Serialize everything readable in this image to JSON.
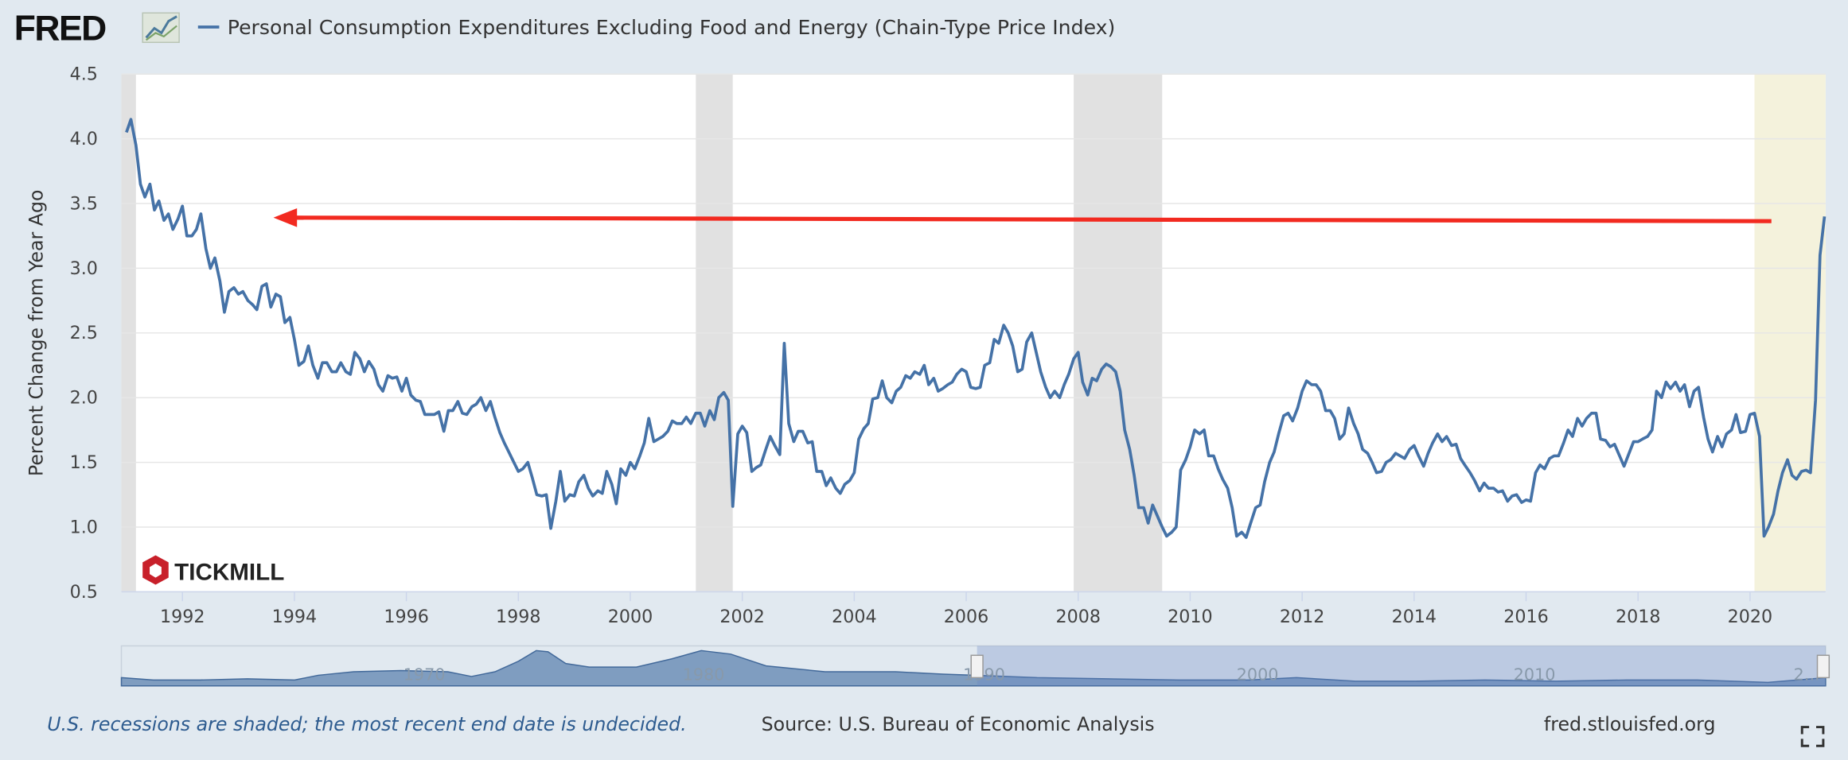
{
  "logo": "FRED",
  "chart_data": {
    "type": "line",
    "ylabel": "Percent Change from Year Ago",
    "xlim": [
      1990.91,
      2021.35
    ],
    "ylim": [
      0.5,
      4.5
    ],
    "xticks": [
      1992,
      1994,
      1996,
      1998,
      2000,
      2002,
      2004,
      2006,
      2008,
      2010,
      2012,
      2014,
      2016,
      2018,
      2020
    ],
    "yticks": [
      0.5,
      {
        "value": 1,
        "label": "1.0"
      },
      1.5,
      {
        "value": 2,
        "label": "2.0"
      },
      2.5,
      {
        "value": 3,
        "label": "3.0"
      },
      3.5,
      {
        "value": 4,
        "label": "4.0"
      },
      4.5
    ],
    "grid": true,
    "recession_color": "#e1e1e1",
    "open_recession_color": "#f4f2dc",
    "recessions": [
      {
        "start": 1990.58,
        "end": 1991.17
      },
      {
        "start": 2001.17,
        "end": 2001.83
      },
      {
        "start": 2007.92,
        "end": 2009.5
      },
      {
        "start": 2020.08
      }
    ],
    "x": [
      1991.0,
      1991.08,
      1991.17,
      1991.25,
      1991.33,
      1991.42,
      1991.5,
      1991.58,
      1991.67,
      1991.75,
      1991.83,
      1991.92,
      1992.0,
      1992.08,
      1992.17,
      1992.25,
      1992.33,
      1992.42,
      1992.5,
      1992.58,
      1992.67,
      1992.75,
      1992.83,
      1992.92,
      1993.0,
      1993.08,
      1993.17,
      1993.25,
      1993.33,
      1993.42,
      1993.5,
      1993.58,
      1993.67,
      1993.75,
      1993.83,
      1993.92,
      1994.0,
      1994.08,
      1994.17,
      1994.25,
      1994.33,
      1994.42,
      1994.5,
      1994.58,
      1994.67,
      1994.75,
      1994.83,
      1994.92,
      1995.0,
      1995.08,
      1995.17,
      1995.25,
      1995.33,
      1995.42,
      1995.5,
      1995.58,
      1995.67,
      1995.75,
      1995.83,
      1995.92,
      1996.0,
      1996.08,
      1996.17,
      1996.25,
      1996.33,
      1996.42,
      1996.5,
      1996.58,
      1996.67,
      1996.75,
      1996.83,
      1996.92,
      1997.0,
      1997.08,
      1997.17,
      1997.25,
      1997.33,
      1997.42,
      1997.5,
      1997.58,
      1997.67,
      1997.75,
      1997.83,
      1997.92,
      1998.0,
      1998.08,
      1998.17,
      1998.25,
      1998.33,
      1998.42,
      1998.5,
      1998.58,
      1998.67,
      1998.75,
      1998.83,
      1998.92,
      1999.0,
      1999.08,
      1999.17,
      1999.25,
      1999.33,
      1999.42,
      1999.5,
      1999.58,
      1999.67,
      1999.75,
      1999.83,
      1999.92,
      2000.0,
      2000.08,
      2000.17,
      2000.25,
      2000.33,
      2000.42,
      2000.5,
      2000.58,
      2000.67,
      2000.75,
      2000.83,
      2000.92,
      2001.0,
      2001.08,
      2001.17,
      2001.25,
      2001.33,
      2001.42,
      2001.5,
      2001.58,
      2001.67,
      2001.75,
      2001.83,
      2001.92,
      2002.0,
      2002.08,
      2002.17,
      2002.25,
      2002.33,
      2002.42,
      2002.5,
      2002.58,
      2002.67,
      2002.75,
      2002.83,
      2002.92,
      2003.0,
      2003.08,
      2003.17,
      2003.25,
      2003.33,
      2003.42,
      2003.5,
      2003.58,
      2003.67,
      2003.75,
      2003.83,
      2003.92,
      2004.0,
      2004.08,
      2004.17,
      2004.25,
      2004.33,
      2004.42,
      2004.5,
      2004.58,
      2004.67,
      2004.75,
      2004.83,
      2004.92,
      2005.0,
      2005.08,
      2005.17,
      2005.25,
      2005.33,
      2005.42,
      2005.5,
      2005.58,
      2005.67,
      2005.75,
      2005.83,
      2005.92,
      2006.0,
      2006.08,
      2006.17,
      2006.25,
      2006.33,
      2006.42,
      2006.5,
      2006.58,
      2006.67,
      2006.75,
      2006.83,
      2006.92,
      2007.0,
      2007.08,
      2007.17,
      2007.25,
      2007.33,
      2007.42,
      2007.5,
      2007.58,
      2007.67,
      2007.75,
      2007.83,
      2007.92,
      2008.0,
      2008.08,
      2008.17,
      2008.25,
      2008.33,
      2008.42,
      2008.5,
      2008.58,
      2008.67,
      2008.75,
      2008.83,
      2008.92,
      2009.0,
      2009.08,
      2009.17,
      2009.25,
      2009.33,
      2009.42,
      2009.5,
      2009.58,
      2009.67,
      2009.75,
      2009.83,
      2009.92,
      2010.0,
      2010.08,
      2010.17,
      2010.25,
      2010.33,
      2010.42,
      2010.5,
      2010.58,
      2010.67,
      2010.75,
      2010.83,
      2010.92,
      2011.0,
      2011.08,
      2011.17,
      2011.25,
      2011.33,
      2011.42,
      2011.5,
      2011.58,
      2011.67,
      2011.75,
      2011.83,
      2011.92,
      2012.0,
      2012.08,
      2012.17,
      2012.25,
      2012.33,
      2012.42,
      2012.5,
      2012.58,
      2012.67,
      2012.75,
      2012.83,
      2012.92,
      2013.0,
      2013.08,
      2013.17,
      2013.25,
      2013.33,
      2013.42,
      2013.5,
      2013.58,
      2013.67,
      2013.75,
      2013.83,
      2013.92,
      2014.0,
      2014.08,
      2014.17,
      2014.25,
      2014.33,
      2014.42,
      2014.5,
      2014.58,
      2014.67,
      2014.75,
      2014.83,
      2014.92,
      2015.0,
      2015.08,
      2015.17,
      2015.25,
      2015.33,
      2015.42,
      2015.5,
      2015.58,
      2015.67,
      2015.75,
      2015.83,
      2015.92,
      2016.0,
      2016.08,
      2016.17,
      2016.25,
      2016.33,
      2016.42,
      2016.5,
      2016.58,
      2016.67,
      2016.75,
      2016.83,
      2016.92,
      2017.0,
      2017.08,
      2017.17,
      2017.25,
      2017.33,
      2017.42,
      2017.5,
      2017.58,
      2017.67,
      2017.75,
      2017.83,
      2017.92,
      2018.0,
      2018.08,
      2018.17,
      2018.25,
      2018.33,
      2018.42,
      2018.5,
      2018.58,
      2018.67,
      2018.75,
      2018.83,
      2018.92,
      2019.0,
      2019.08,
      2019.17,
      2019.25,
      2019.33,
      2019.42,
      2019.5,
      2019.58,
      2019.67,
      2019.75,
      2019.83,
      2019.92,
      2020.0,
      2020.08,
      2020.17,
      2020.25,
      2020.33,
      2020.42,
      2020.5,
      2020.58,
      2020.67,
      2020.75,
      2020.83,
      2020.92,
      2021.0,
      2021.08,
      2021.17,
      2021.25,
      2021.33
    ],
    "series": [
      {
        "name": "Personal Consumption Expenditures Excluding Food and Energy (Chain-Type Price Index)",
        "color": "#4572a7",
        "values": [
          4.05,
          4.15,
          3.95,
          3.65,
          3.55,
          3.65,
          3.45,
          3.52,
          3.37,
          3.42,
          3.3,
          3.38,
          3.48,
          3.25,
          3.25,
          3.3,
          3.42,
          3.15,
          3.0,
          3.08,
          2.9,
          2.66,
          2.82,
          2.85,
          2.8,
          2.82,
          2.75,
          2.72,
          2.68,
          2.86,
          2.88,
          2.7,
          2.8,
          2.78,
          2.58,
          2.62,
          2.45,
          2.25,
          2.28,
          2.4,
          2.25,
          2.15,
          2.27,
          2.27,
          2.2,
          2.2,
          2.27,
          2.2,
          2.18,
          2.35,
          2.3,
          2.2,
          2.28,
          2.22,
          2.1,
          2.05,
          2.17,
          2.15,
          2.16,
          2.05,
          2.15,
          2.02,
          1.98,
          1.97,
          1.87,
          1.87,
          1.87,
          1.89,
          1.74,
          1.9,
          1.9,
          1.97,
          1.88,
          1.87,
          1.93,
          1.95,
          2.0,
          1.9,
          1.97,
          1.85,
          1.73,
          1.65,
          1.58,
          1.5,
          1.43,
          1.45,
          1.5,
          1.38,
          1.25,
          1.24,
          1.25,
          0.99,
          1.2,
          1.43,
          1.2,
          1.25,
          1.24,
          1.35,
          1.4,
          1.3,
          1.24,
          1.28,
          1.26,
          1.43,
          1.33,
          1.18,
          1.45,
          1.4,
          1.5,
          1.45,
          1.55,
          1.65,
          1.84,
          1.66,
          1.68,
          1.7,
          1.74,
          1.82,
          1.8,
          1.8,
          1.85,
          1.8,
          1.88,
          1.88,
          1.78,
          1.9,
          1.83,
          2.0,
          2.04,
          1.98,
          1.16,
          1.72,
          1.78,
          1.73,
          1.43,
          1.46,
          1.48,
          1.6,
          1.7,
          1.63,
          1.56,
          2.42,
          1.8,
          1.66,
          1.74,
          1.74,
          1.65,
          1.66,
          1.43,
          1.43,
          1.32,
          1.38,
          1.3,
          1.26,
          1.33,
          1.36,
          1.42,
          1.68,
          1.76,
          1.8,
          1.99,
          2.0,
          2.13,
          2.0,
          1.96,
          2.05,
          2.08,
          2.17,
          2.15,
          2.2,
          2.18,
          2.25,
          2.1,
          2.15,
          2.05,
          2.07,
          2.1,
          2.12,
          2.18,
          2.22,
          2.2,
          2.08,
          2.07,
          2.08,
          2.25,
          2.27,
          2.45,
          2.42,
          2.56,
          2.5,
          2.4,
          2.2,
          2.22,
          2.43,
          2.5,
          2.35,
          2.2,
          2.08,
          2.0,
          2.05,
          2.0,
          2.1,
          2.18,
          2.3,
          2.35,
          2.12,
          2.02,
          2.15,
          2.13,
          2.22,
          2.26,
          2.24,
          2.2,
          2.05,
          1.75,
          1.6,
          1.4,
          1.15,
          1.15,
          1.03,
          1.17,
          1.08,
          1.0,
          0.93,
          0.96,
          1.0,
          1.44,
          1.52,
          1.62,
          1.75,
          1.72,
          1.75,
          1.55,
          1.55,
          1.45,
          1.37,
          1.3,
          1.15,
          0.93,
          0.96,
          0.92,
          1.03,
          1.15,
          1.17,
          1.35,
          1.5,
          1.58,
          1.72,
          1.86,
          1.88,
          1.82,
          1.92,
          2.05,
          2.13,
          2.1,
          2.1,
          2.05,
          1.9,
          1.9,
          1.84,
          1.68,
          1.72,
          1.92,
          1.8,
          1.72,
          1.6,
          1.57,
          1.5,
          1.42,
          1.43,
          1.5,
          1.52,
          1.57,
          1.55,
          1.53,
          1.6,
          1.63,
          1.55,
          1.47,
          1.57,
          1.65,
          1.72,
          1.66,
          1.7,
          1.63,
          1.64,
          1.53,
          1.47,
          1.42,
          1.36,
          1.28,
          1.34,
          1.3,
          1.3,
          1.27,
          1.28,
          1.2,
          1.24,
          1.25,
          1.19,
          1.21,
          1.2,
          1.42,
          1.48,
          1.45,
          1.53,
          1.55,
          1.55,
          1.65,
          1.75,
          1.7,
          1.84,
          1.78,
          1.84,
          1.88,
          1.88,
          1.68,
          1.67,
          1.62,
          1.64,
          1.55,
          1.47,
          1.56,
          1.66,
          1.66,
          1.68,
          1.7,
          1.75,
          2.05,
          2.0,
          2.12,
          2.07,
          2.12,
          2.05,
          2.1,
          1.93,
          2.05,
          2.08,
          1.85,
          1.68,
          1.58,
          1.7,
          1.62,
          1.72,
          1.75,
          1.87,
          1.73,
          1.74,
          1.87,
          1.88,
          1.7,
          0.93,
          1.0,
          1.1,
          1.28,
          1.42,
          1.52,
          1.4,
          1.37,
          1.43,
          1.44,
          1.42,
          1.98,
          3.1,
          3.4
        ]
      }
    ]
  },
  "watermark": "TICKMILL",
  "navigator": {
    "labels": [
      "1970",
      "1980",
      "1990",
      "2000",
      "2010",
      "2..."
    ]
  },
  "footer": {
    "note": "U.S. recessions are shaded; the most recent end date is undecided.",
    "source": "Source: U.S. Bureau of Economic Analysis",
    "url": "fred.stlouisfed.org"
  }
}
